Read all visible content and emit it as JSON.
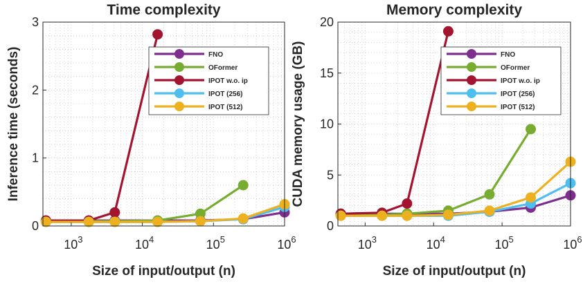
{
  "chart_data": [
    {
      "type": "line",
      "title": "Time complexity",
      "xlabel": "Size of input/output (n)",
      "ylabel": "Inference time (seconds)",
      "xscale": "log",
      "xlim": [
        400,
        1000000
      ],
      "ylim": [
        0,
        3
      ],
      "x_ticks": [
        1000,
        10000,
        100000,
        1000000
      ],
      "x_tick_labels": [
        {
          "base": "10",
          "exp": "3"
        },
        {
          "base": "10",
          "exp": "4"
        },
        {
          "base": "10",
          "exp": "5"
        },
        {
          "base": "10",
          "exp": "6"
        }
      ],
      "y_ticks": [
        0,
        1,
        2,
        3
      ],
      "y_tick_labels": [
        "0",
        "1",
        "2",
        "3"
      ],
      "grid": true,
      "legend_position": "upper-right",
      "series": [
        {
          "name": "FNO",
          "color": "#7e2f8e",
          "x": [
            441,
            1764,
            4096,
            16384,
            65536,
            262144,
            1000000
          ],
          "y": [
            0.08,
            0.08,
            0.08,
            0.08,
            0.08,
            0.1,
            0.2
          ]
        },
        {
          "name": "OFormer",
          "color": "#77ac30",
          "x": [
            441,
            1764,
            4096,
            16384,
            65536,
            262144
          ],
          "y": [
            0.07,
            0.07,
            0.07,
            0.08,
            0.18,
            0.6
          ]
        },
        {
          "name": "IPOT w.o. ip",
          "color": "#a2142f",
          "x": [
            441,
            1764,
            4096,
            16384
          ],
          "y": [
            0.08,
            0.08,
            0.2,
            2.82
          ]
        },
        {
          "name": "IPOT (256)",
          "color": "#4dbeee",
          "x": [
            441,
            1764,
            4096,
            16384,
            65536,
            262144,
            1000000
          ],
          "y": [
            0.06,
            0.06,
            0.06,
            0.06,
            0.07,
            0.1,
            0.28
          ]
        },
        {
          "name": "IPOT (512)",
          "color": "#edb120",
          "x": [
            441,
            1764,
            4096,
            16384,
            65536,
            262144,
            1000000
          ],
          "y": [
            0.06,
            0.06,
            0.06,
            0.06,
            0.07,
            0.11,
            0.32
          ]
        }
      ]
    },
    {
      "type": "line",
      "title": "Memory complexity",
      "xlabel": "Size of input/output (n)",
      "ylabel": "CUDA memory usage (GB)",
      "xscale": "log",
      "xlim": [
        400,
        1000000
      ],
      "ylim": [
        0,
        20
      ],
      "x_ticks": [
        1000,
        10000,
        100000,
        1000000
      ],
      "x_tick_labels": [
        {
          "base": "10",
          "exp": "3"
        },
        {
          "base": "10",
          "exp": "4"
        },
        {
          "base": "10",
          "exp": "5"
        },
        {
          "base": "10",
          "exp": "6"
        }
      ],
      "y_ticks": [
        0,
        5,
        10,
        15,
        20
      ],
      "y_tick_labels": [
        "0",
        "5",
        "10",
        "15",
        "20"
      ],
      "grid": true,
      "legend_position": "upper-right",
      "series": [
        {
          "name": "FNO",
          "color": "#7e2f8e",
          "x": [
            441,
            1764,
            4096,
            16384,
            65536,
            262144,
            1000000
          ],
          "y": [
            1.2,
            1.2,
            1.2,
            1.2,
            1.4,
            1.8,
            3.0
          ]
        },
        {
          "name": "OFormer",
          "color": "#77ac30",
          "x": [
            441,
            1764,
            4096,
            16384,
            65536,
            262144
          ],
          "y": [
            1.1,
            1.1,
            1.2,
            1.5,
            3.1,
            9.5
          ]
        },
        {
          "name": "IPOT w.o. ip",
          "color": "#a2142f",
          "x": [
            441,
            1764,
            4096,
            16384
          ],
          "y": [
            1.2,
            1.3,
            2.2,
            19.1
          ]
        },
        {
          "name": "IPOT (256)",
          "color": "#4dbeee",
          "x": [
            441,
            1764,
            4096,
            16384,
            65536,
            262144,
            1000000
          ],
          "y": [
            1.0,
            1.0,
            1.0,
            1.0,
            1.4,
            2.2,
            4.2
          ]
        },
        {
          "name": "IPOT (512)",
          "color": "#edb120",
          "x": [
            441,
            1764,
            4096,
            16384,
            65536,
            262144,
            1000000
          ],
          "y": [
            1.0,
            1.0,
            1.0,
            1.1,
            1.5,
            2.8,
            6.3
          ]
        }
      ]
    }
  ]
}
